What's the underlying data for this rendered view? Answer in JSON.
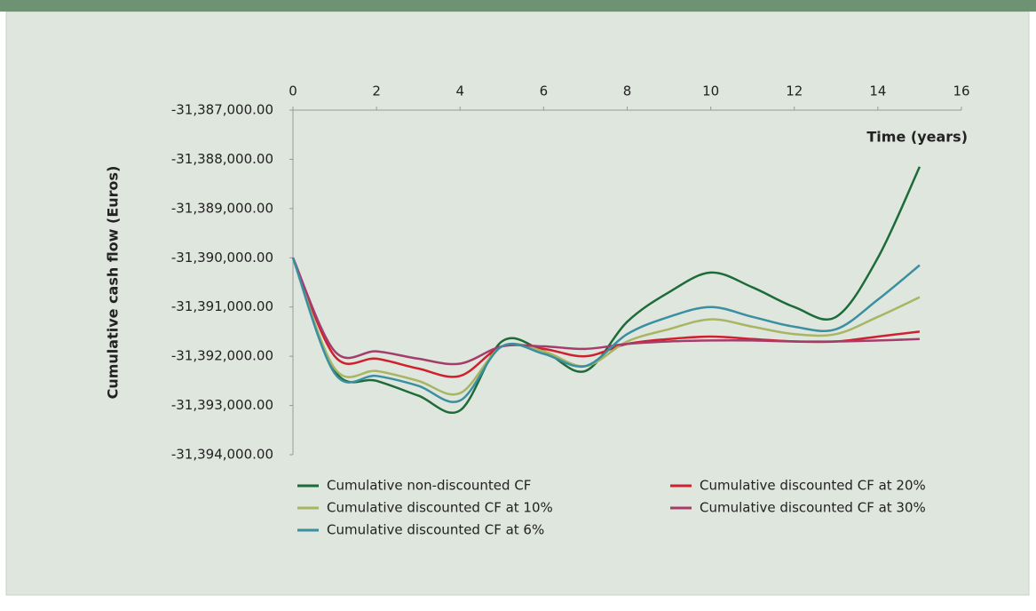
{
  "chart_data": {
    "type": "line",
    "x_label": "Time (years)",
    "y_label": "Cumulative cash flow (Euros)",
    "x": [
      0,
      1,
      2,
      3,
      4,
      5,
      6,
      7,
      8,
      9,
      10,
      11,
      12,
      13,
      14,
      15
    ],
    "xlim": [
      0,
      16
    ],
    "xticks": [
      0,
      2,
      4,
      6,
      8,
      10,
      12,
      14,
      16
    ],
    "ylim": [
      -31394000,
      -31387000
    ],
    "yticks": [
      {
        "value": -31387000,
        "label": "-31,387,000.00"
      },
      {
        "value": -31388000,
        "label": "-31,388,000.00"
      },
      {
        "value": -31389000,
        "label": "-31,389,000.00"
      },
      {
        "value": -31390000,
        "label": "-31,390,000.00"
      },
      {
        "value": -31391000,
        "label": "-31,391,000.00"
      },
      {
        "value": -31392000,
        "label": "-31,392,000.00"
      },
      {
        "value": -31393000,
        "label": "-31,393,000.00"
      },
      {
        "value": -31394000,
        "label": "-31,394,000.00"
      }
    ],
    "series": [
      {
        "name": "Cumulative non-discounted CF",
        "color": "#1e6b3a",
        "values": [
          -31390000,
          -31392300,
          -31392500,
          -31392800,
          -31393100,
          -31391700,
          -31391900,
          -31392300,
          -31391300,
          -31390700,
          -31390300,
          -31390600,
          -31391000,
          -31391200,
          -31390000,
          -31388150
        ]
      },
      {
        "name": "Cumulative discounted CF at 20%",
        "color": "#d0202e",
        "values": [
          -31390000,
          -31392000,
          -31392050,
          -31392250,
          -31392400,
          -31391800,
          -31391850,
          -31392000,
          -31391750,
          -31391650,
          -31391600,
          -31391650,
          -31391700,
          -31391700,
          -31391600,
          -31391500
        ]
      },
      {
        "name": "Cumulative discounted CF at 10%",
        "color": "#a8b563",
        "values": [
          -31390000,
          -31392250,
          -31392300,
          -31392500,
          -31392750,
          -31391800,
          -31391900,
          -31392200,
          -31391700,
          -31391450,
          -31391250,
          -31391400,
          -31391550,
          -31391550,
          -31391200,
          -31390800
        ]
      },
      {
        "name": "Cumulative discounted CF at 30%",
        "color": "#a43c6c",
        "values": [
          -31390000,
          -31391900,
          -31391900,
          -31392050,
          -31392150,
          -31391800,
          -31391800,
          -31391850,
          -31391750,
          -31391700,
          -31391680,
          -31391680,
          -31391700,
          -31391700,
          -31391680,
          -31391650
        ]
      },
      {
        "name": "Cumulative discounted CF at 6%",
        "color": "#3a8fa0",
        "values": [
          -31390000,
          -31392350,
          -31392400,
          -31392600,
          -31392900,
          -31391800,
          -31391950,
          -31392200,
          -31391550,
          -31391200,
          -31391000,
          -31391200,
          -31391400,
          -31391450,
          -31390850,
          -31390150
        ]
      }
    ]
  }
}
